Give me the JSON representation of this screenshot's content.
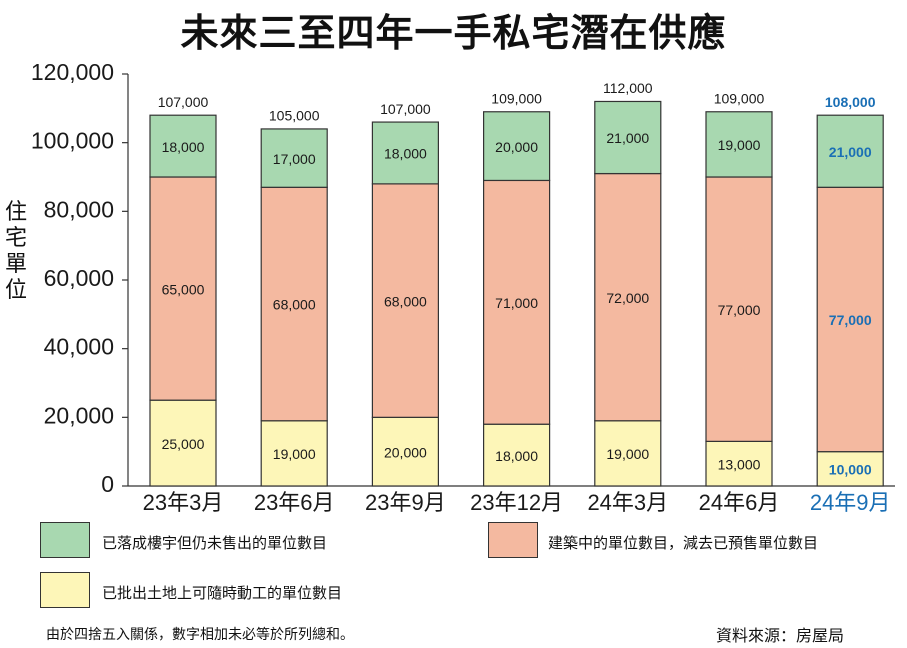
{
  "chart_data": {
    "type": "bar",
    "stacked": true,
    "title": "未來三至四年一手私宅潛在供應",
    "ylabel": "住宅單位",
    "ylim": [
      0,
      120000
    ],
    "yticks": [
      "0",
      "20,000",
      "40,000",
      "60,000",
      "80,000",
      "100,000",
      "120,000"
    ],
    "categories": [
      "23年3月",
      "23年6月",
      "23年9月",
      "23年12月",
      "24年3月",
      "24年6月",
      "24年9月"
    ],
    "totals": [
      107000,
      105000,
      107000,
      109000,
      112000,
      109000,
      108000
    ],
    "total_labels": [
      "107,000",
      "105,000",
      "107,000",
      "109,000",
      "112,000",
      "109,000",
      "108,000"
    ],
    "series": [
      {
        "name": "已批出土地上可隨時動工的單位數目",
        "color": "#fdf6b8",
        "values": [
          25000,
          19000,
          20000,
          18000,
          19000,
          13000,
          10000
        ],
        "labels": [
          "25,000",
          "19,000",
          "20,000",
          "18,000",
          "19,000",
          "13,000",
          "10,000"
        ]
      },
      {
        "name": "建築中的單位數目，減去已預售單位數目",
        "color": "#f4b9a0",
        "values": [
          65000,
          68000,
          68000,
          71000,
          72000,
          77000,
          77000
        ],
        "labels": [
          "65,000",
          "68,000",
          "68,000",
          "71,000",
          "72,000",
          "77,000",
          "77,000"
        ]
      },
      {
        "name": "已落成樓宇但仍未售出的單位數目",
        "color": "#a8d8b0",
        "values": [
          18000,
          17000,
          18000,
          20000,
          21000,
          19000,
          21000
        ],
        "labels": [
          "18,000",
          "17,000",
          "18,000",
          "20,000",
          "21,000",
          "19,000",
          "21,000"
        ]
      }
    ],
    "highlight_index": 6,
    "highlight_color": "#1a6fb5",
    "grid": false
  },
  "note": "由於四捨五入關係，數字相加未必等於所列總和。",
  "source": "資料來源：房屋局"
}
